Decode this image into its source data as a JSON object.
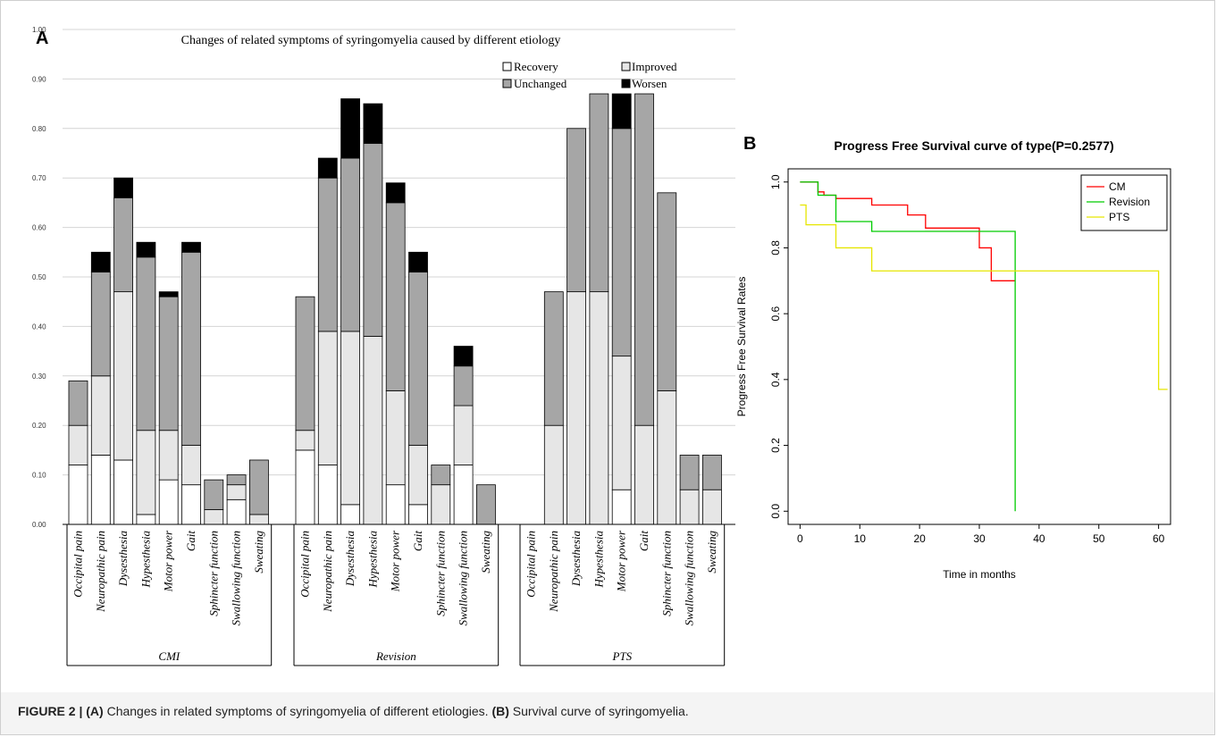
{
  "caption": {
    "fig_label": "FIGURE 2 |",
    "a_label": "(A)",
    "a_text": " Changes in related symptoms of syringomyelia of different etiologies.",
    "b_label": "(B)",
    "b_text": " Survival curve of syringomyelia."
  },
  "colors": {
    "recovery": "#ffffff",
    "improved": "#e6e6e6",
    "unchanged": "#a6a6a6",
    "worsen": "#000000",
    "cm": "#ff0000",
    "revision": "#00cc00",
    "pts": "#e6e600"
  },
  "chart_data": [
    {
      "panel": "A",
      "type": "bar",
      "stacked": true,
      "title": "Changes of related symptoms of syringomyelia caused by different etiology",
      "ylim": [
        0,
        1
      ],
      "yticks": [
        "0.00",
        "0.10",
        "0.20",
        "0.30",
        "0.40",
        "0.50",
        "0.60",
        "0.70",
        "0.80",
        "0.90",
        "1.00"
      ],
      "grid": true,
      "legend": [
        "Recovery",
        "Improved",
        "Unchanged",
        "Worsen"
      ],
      "legend_position": "top-right",
      "groups": [
        {
          "name": "CMI",
          "categories": [
            "Occipital  pain",
            "Neuropathic pain",
            "Dysesthesia",
            "Hypesthesia",
            "Motor  power",
            "Gait",
            "Sphincter function",
            "Swallowing function",
            "Sweating"
          ],
          "series": [
            {
              "name": "Recovery",
              "values": [
                0.12,
                0.14,
                0.13,
                0.02,
                0.09,
                0.08,
                0.0,
                0.05,
                0.0
              ]
            },
            {
              "name": "Improved",
              "values": [
                0.08,
                0.16,
                0.34,
                0.17,
                0.1,
                0.08,
                0.03,
                0.03,
                0.02
              ]
            },
            {
              "name": "Unchanged",
              "values": [
                0.09,
                0.21,
                0.19,
                0.35,
                0.27,
                0.39,
                0.06,
                0.02,
                0.11
              ]
            },
            {
              "name": "Worsen",
              "values": [
                0.0,
                0.04,
                0.04,
                0.03,
                0.01,
                0.02,
                0.0,
                0.0,
                0.0
              ]
            }
          ]
        },
        {
          "name": "Revision",
          "categories": [
            "Occipital  pain",
            "Neuropathic pain",
            "Dysesthesia",
            "Hypesthesia",
            "Motor  power",
            "Gait",
            "Sphincter function",
            "Swallowing function",
            "Sweating"
          ],
          "series": [
            {
              "name": "Recovery",
              "values": [
                0.15,
                0.12,
                0.04,
                0.0,
                0.08,
                0.04,
                0.0,
                0.12,
                0.0
              ]
            },
            {
              "name": "Improved",
              "values": [
                0.04,
                0.27,
                0.35,
                0.38,
                0.19,
                0.12,
                0.08,
                0.12,
                0.0
              ]
            },
            {
              "name": "Unchanged",
              "values": [
                0.27,
                0.31,
                0.35,
                0.39,
                0.38,
                0.35,
                0.04,
                0.08,
                0.08
              ]
            },
            {
              "name": "Worsen",
              "values": [
                0.0,
                0.04,
                0.12,
                0.08,
                0.04,
                0.04,
                0.0,
                0.04,
                0.0
              ]
            }
          ]
        },
        {
          "name": "PTS",
          "categories": [
            "Occipital  pain",
            "Neuropathic pain",
            "Dysesthesia",
            "Hypesthesia",
            "Motor  power",
            "Gait",
            "Sphincter function",
            "Swallowing function",
            "Sweating"
          ],
          "series": [
            {
              "name": "Recovery",
              "values": [
                0.0,
                0.0,
                0.0,
                0.0,
                0.07,
                0.0,
                0.0,
                0.0,
                0.0
              ]
            },
            {
              "name": "Improved",
              "values": [
                0.0,
                0.2,
                0.47,
                0.47,
                0.27,
                0.2,
                0.27,
                0.07,
                0.07
              ]
            },
            {
              "name": "Unchanged",
              "values": [
                0.0,
                0.27,
                0.33,
                0.4,
                0.46,
                0.67,
                0.4,
                0.07,
                0.07
              ]
            },
            {
              "name": "Worsen",
              "values": [
                0.0,
                0.0,
                0.0,
                0.0,
                0.07,
                0.0,
                0.0,
                0.0,
                0.0
              ]
            }
          ]
        }
      ]
    },
    {
      "panel": "B",
      "type": "line",
      "step": true,
      "title": "Progress Free Survival curve of type(P=0.2577)",
      "xlabel": "Time in months",
      "ylabel": "Progress Free Survival Rates",
      "xlim": [
        -2,
        62
      ],
      "ylim": [
        -0.04,
        1.04
      ],
      "xticks": [
        "0",
        "10",
        "20",
        "30",
        "40",
        "50",
        "60"
      ],
      "yticks": [
        "0.0",
        "0.2",
        "0.4",
        "0.6",
        "0.8",
        "1.0"
      ],
      "legend_position": "top-right",
      "series": [
        {
          "name": "CM",
          "x": [
            0,
            3,
            4,
            6,
            12,
            18,
            21,
            30,
            32,
            36
          ],
          "y": [
            1.0,
            0.97,
            0.96,
            0.95,
            0.93,
            0.9,
            0.86,
            0.8,
            0.7,
            0.7
          ]
        },
        {
          "name": "Revision",
          "x": [
            0,
            3,
            6,
            12,
            36,
            36
          ],
          "y": [
            1.0,
            0.96,
            0.88,
            0.85,
            0.85,
            0.0
          ]
        },
        {
          "name": "PTS",
          "x": [
            0,
            1,
            6,
            12,
            60,
            61.5
          ],
          "y": [
            0.93,
            0.87,
            0.8,
            0.73,
            0.37,
            0.37
          ]
        }
      ]
    }
  ]
}
